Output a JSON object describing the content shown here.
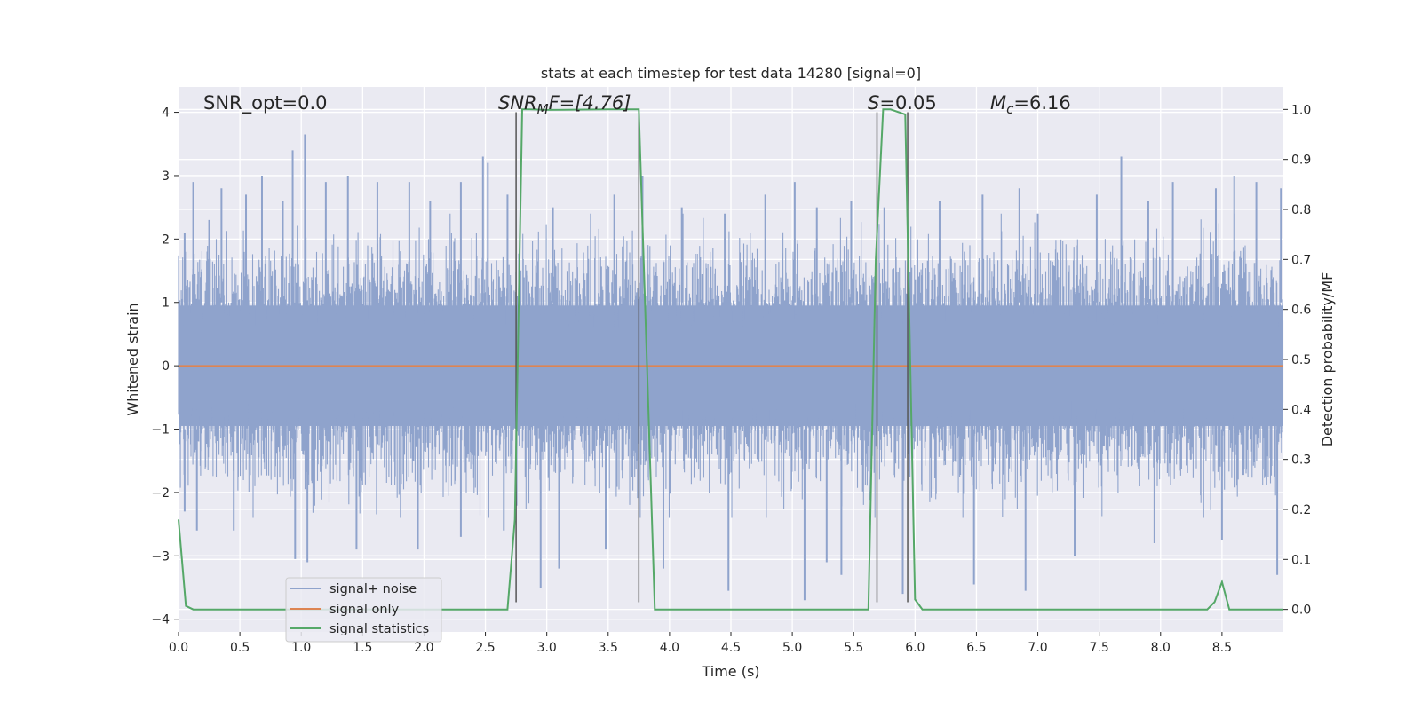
{
  "chart_data": {
    "type": "line",
    "title": "stats at each timestep for test data 14280 [signal=0]",
    "xlabel": "Time (s)",
    "ylabel_left": "Whitened strain",
    "ylabel_right": "Detection probability/MF",
    "xlim": [
      0,
      9
    ],
    "ylim_left": [
      -4.2,
      4.4
    ],
    "ylim_right": [
      -0.045,
      1.045
    ],
    "x_ticks": [
      "0.0",
      "0.5",
      "1.0",
      "1.5",
      "2.0",
      "2.5",
      "3.0",
      "3.5",
      "4.0",
      "4.5",
      "5.0",
      "5.5",
      "6.0",
      "6.5",
      "7.0",
      "7.5",
      "8.0",
      "8.5"
    ],
    "x_tick_values": [
      0,
      0.5,
      1,
      1.5,
      2,
      2.5,
      3,
      3.5,
      4,
      4.5,
      5,
      5.5,
      6,
      6.5,
      7,
      7.5,
      8,
      8.5
    ],
    "y_left_ticks": [
      "4",
      "3",
      "2",
      "1",
      "0",
      "−1",
      "−2",
      "−3",
      "−4"
    ],
    "y_left_tick_values": [
      4,
      3,
      2,
      1,
      0,
      -1,
      -2,
      -3,
      -4
    ],
    "y_right_ticks": [
      "1.0",
      "0.9",
      "0.8",
      "0.7",
      "0.6",
      "0.5",
      "0.4",
      "0.3",
      "0.2",
      "0.1",
      "0.0"
    ],
    "y_right_tick_values": [
      1.0,
      0.9,
      0.8,
      0.7,
      0.6,
      0.5,
      0.4,
      0.3,
      0.2,
      0.1,
      0.0
    ],
    "grid": true,
    "legend_position": "lower-left",
    "annotations": {
      "snr_opt": "SNR_opt=0.0",
      "snr_mf_main": "SNR",
      "snr_mf_sub": "M",
      "snr_mf_rest": "F=[4.76]",
      "s_main": "S",
      "s_rest": "=0.05",
      "mc_main": "M",
      "mc_sub": "c",
      "mc_rest": "=6.16"
    },
    "series": [
      {
        "name": "signal+ noise",
        "color": "#8fa3cc",
        "axis": "left",
        "description_values": "whitened noise envelope",
        "peak_upper": [
          [
            0.05,
            2.1
          ],
          [
            0.12,
            2.9
          ],
          [
            0.25,
            2.3
          ],
          [
            0.35,
            2.8
          ],
          [
            0.55,
            2.7
          ],
          [
            0.68,
            3.0
          ],
          [
            0.85,
            2.6
          ],
          [
            0.93,
            3.4
          ],
          [
            1.03,
            3.65
          ],
          [
            1.2,
            2.9
          ],
          [
            1.38,
            3.0
          ],
          [
            1.62,
            2.9
          ],
          [
            1.88,
            2.9
          ],
          [
            2.05,
            2.6
          ],
          [
            2.3,
            2.9
          ],
          [
            2.48,
            3.3
          ],
          [
            2.52,
            3.2
          ],
          [
            2.68,
            2.7
          ],
          [
            3.05,
            2.5
          ],
          [
            3.55,
            2.7
          ],
          [
            3.78,
            3.0
          ],
          [
            4.1,
            2.5
          ],
          [
            4.45,
            2.4
          ],
          [
            4.78,
            2.7
          ],
          [
            5.02,
            2.9
          ],
          [
            5.2,
            2.5
          ],
          [
            5.48,
            2.6
          ],
          [
            5.75,
            2.5
          ],
          [
            6.2,
            2.6
          ],
          [
            6.55,
            2.7
          ],
          [
            6.85,
            2.8
          ],
          [
            7.0,
            2.4
          ],
          [
            7.48,
            2.7
          ],
          [
            7.68,
            3.3
          ],
          [
            7.9,
            2.6
          ],
          [
            8.1,
            2.9
          ],
          [
            8.45,
            2.8
          ],
          [
            8.6,
            3.0
          ],
          [
            8.78,
            2.9
          ],
          [
            8.98,
            2.8
          ]
        ],
        "peak_lower": [
          [
            0.05,
            -2.3
          ],
          [
            0.15,
            -2.6
          ],
          [
            0.45,
            -2.6
          ],
          [
            0.95,
            -3.05
          ],
          [
            1.05,
            -3.1
          ],
          [
            1.45,
            -2.9
          ],
          [
            1.95,
            -2.9
          ],
          [
            2.3,
            -2.7
          ],
          [
            2.65,
            -2.6
          ],
          [
            2.95,
            -3.5
          ],
          [
            3.1,
            -3.2
          ],
          [
            3.48,
            -2.9
          ],
          [
            3.95,
            -3.2
          ],
          [
            4.48,
            -3.55
          ],
          [
            5.1,
            -3.7
          ],
          [
            5.28,
            -3.1
          ],
          [
            5.4,
            -3.3
          ],
          [
            5.9,
            -3.6
          ],
          [
            6.48,
            -3.45
          ],
          [
            6.9,
            -3.55
          ],
          [
            7.3,
            -3.0
          ],
          [
            7.95,
            -2.8
          ],
          [
            8.5,
            -2.75
          ],
          [
            8.95,
            -3.3
          ]
        ]
      },
      {
        "name": "signal only",
        "color": "#dd8452",
        "axis": "left",
        "x": [
          0,
          9
        ],
        "y": [
          0,
          0
        ]
      },
      {
        "name": "signal statistics",
        "color": "#55a868",
        "axis": "right",
        "x": [
          0.0,
          0.06,
          0.12,
          2.68,
          2.74,
          2.8,
          2.86,
          3.0,
          3.5,
          3.75,
          3.88,
          5.0,
          5.62,
          5.68,
          5.74,
          5.8,
          5.92,
          6.0,
          6.06,
          8.38,
          8.44,
          8.5,
          8.56,
          9.0
        ],
        "y": [
          0.18,
          0.007,
          0.0,
          0.0,
          0.18,
          1.0,
          1.0,
          0.999,
          1.0,
          1.0,
          0.0,
          0.0,
          0.0,
          0.7,
          1.0,
          1.0,
          0.99,
          0.02,
          0.0,
          0.0,
          0.015,
          0.055,
          0.0,
          0.0
        ]
      }
    ],
    "vertical_lines": [
      {
        "x": 2.75,
        "color": "#555555",
        "y_top": 4.0,
        "y_bottom": -3.73
      },
      {
        "x": 3.75,
        "color": "#555555",
        "y_top": 4.0,
        "y_bottom": -3.73
      },
      {
        "x": 5.69,
        "color": "#555555",
        "y_top": 4.0,
        "y_bottom": -3.73
      },
      {
        "x": 5.94,
        "color": "#555555",
        "y_top": 4.0,
        "y_bottom": -3.73
      }
    ]
  }
}
